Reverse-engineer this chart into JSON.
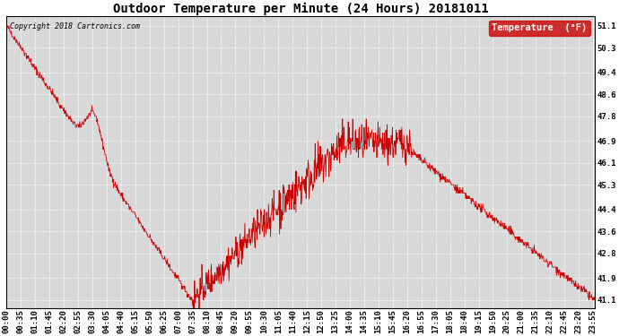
{
  "title": "Outdoor Temperature per Minute (24 Hours) 20181011",
  "copyright": "Copyright 2018 Cartronics.com",
  "legend_label": "Temperature  (°F)",
  "line_color": "#cc0000",
  "legend_bg": "#cc0000",
  "legend_text_color": "#ffffff",
  "bg_color": "#ffffff",
  "plot_bg_color": "#d8d8d8",
  "grid_color": "#ffffff",
  "yticks": [
    41.1,
    41.9,
    42.8,
    43.6,
    44.4,
    45.3,
    46.1,
    46.9,
    47.8,
    48.6,
    49.4,
    50.3,
    51.1
  ],
  "ylim": [
    40.8,
    51.45
  ],
  "title_fontsize": 10,
  "tick_fontsize": 6.5,
  "copyright_fontsize": 6,
  "legend_fontsize": 7.5
}
